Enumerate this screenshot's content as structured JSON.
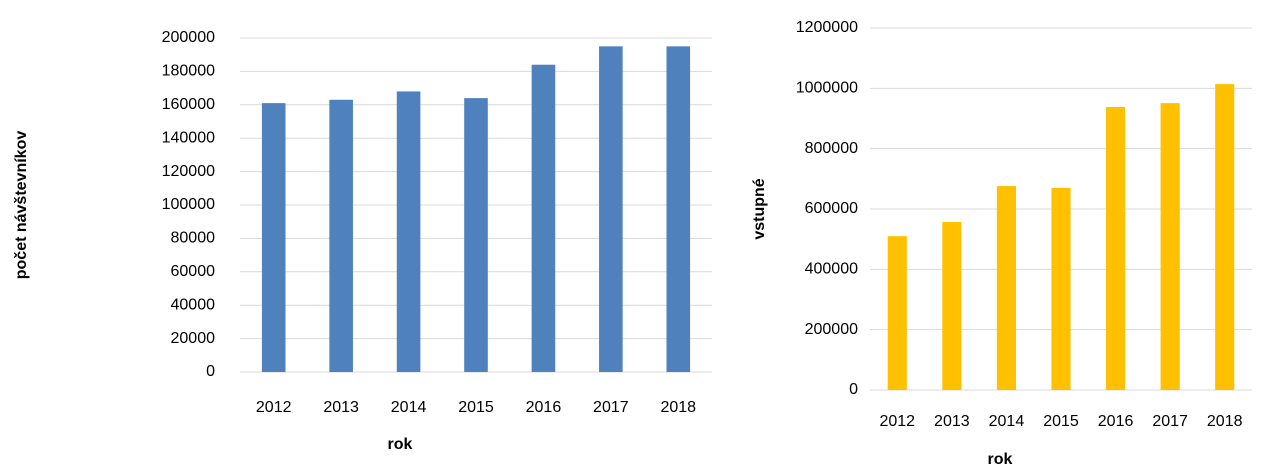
{
  "chart_data": [
    {
      "type": "bar",
      "y_label": "počet návštevníkov",
      "x_label": "rok",
      "categories": [
        "2012",
        "2013",
        "2014",
        "2015",
        "2016",
        "2017",
        "2018"
      ],
      "series": [
        {
          "name": "počet",
          "color": "#4f81bd",
          "values": [
            161000,
            163000,
            168000,
            164000,
            184000,
            195000,
            195000
          ]
        }
      ],
      "ylim": [
        0,
        200000
      ],
      "yticks": [
        0,
        20000,
        40000,
        60000,
        80000,
        100000,
        120000,
        140000,
        160000,
        180000,
        200000
      ],
      "grid": true
    },
    {
      "type": "bar",
      "y_label": "vstupné",
      "x_label": "rok",
      "categories": [
        "2012",
        "2013",
        "2014",
        "2015",
        "2016",
        "2017",
        "2018"
      ],
      "series": [
        {
          "name": "vstupné",
          "color": "#ffc000",
          "values": [
            510000,
            557000,
            676000,
            670000,
            938000,
            951000,
            1014000
          ]
        }
      ],
      "ylim": [
        0,
        1200000
      ],
      "yticks": [
        0,
        200000,
        400000,
        600000,
        800000,
        1000000,
        1200000
      ],
      "grid": true
    }
  ]
}
